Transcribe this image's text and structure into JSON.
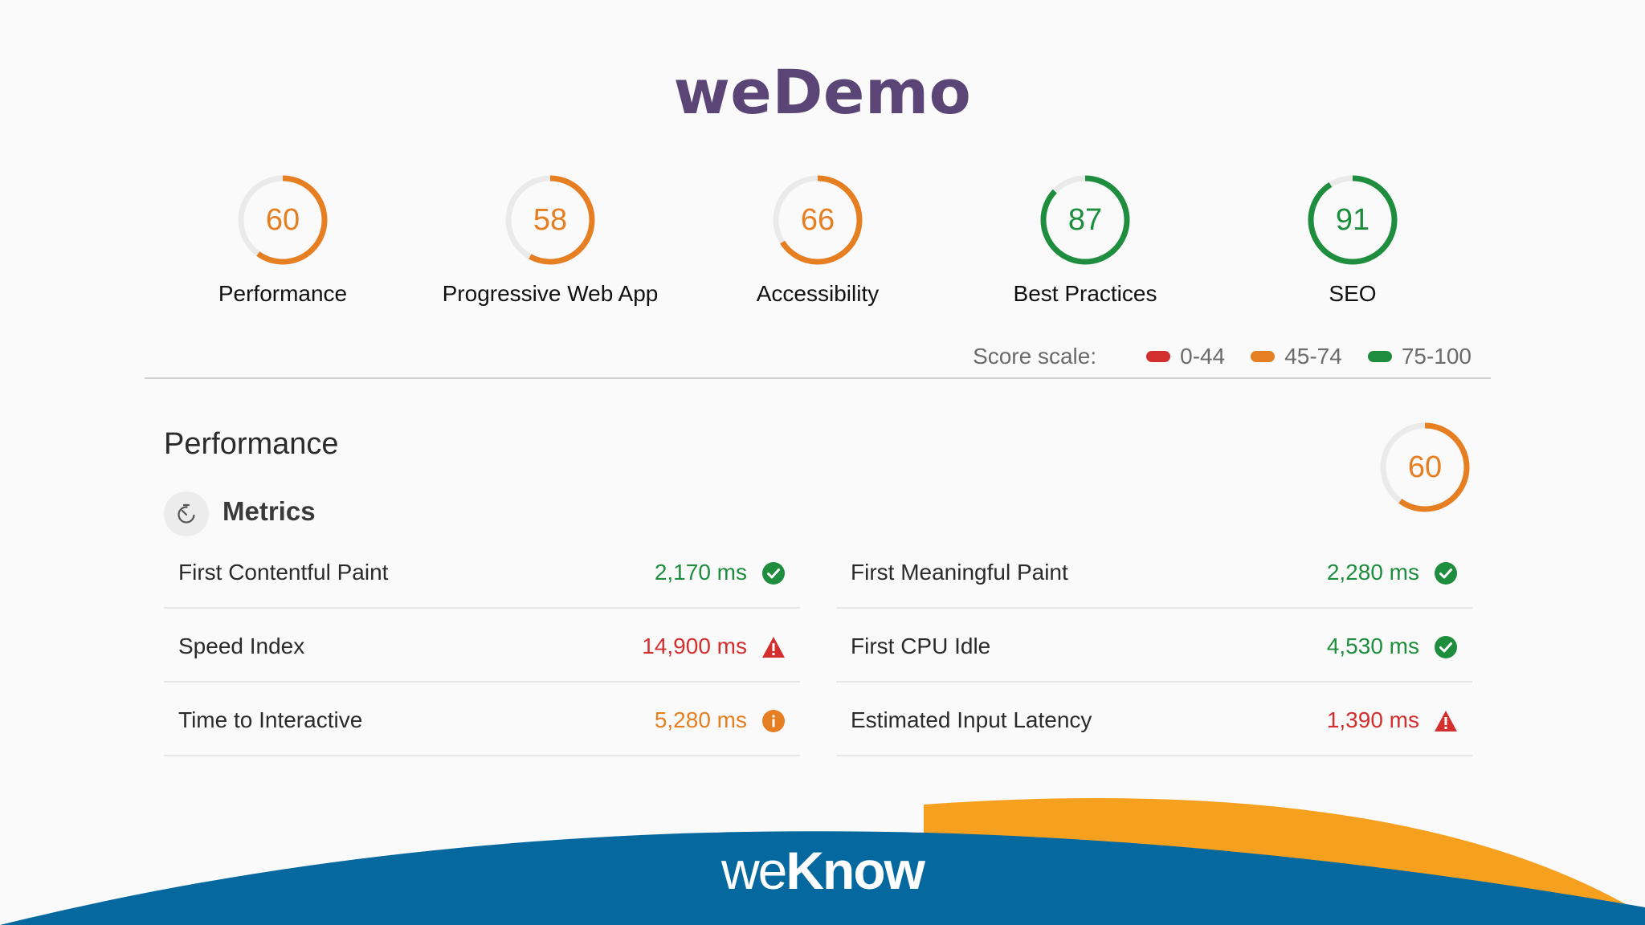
{
  "header": {
    "title": "weDemo"
  },
  "colors": {
    "orange": "#e67e22",
    "green": "#1e8e3e",
    "red": "#d32f2f",
    "track": "#eaeaea",
    "footer_blue": "#0569a0",
    "footer_orange": "#f6a020"
  },
  "scores": [
    {
      "value": 60,
      "label": "Performance",
      "status": "orange"
    },
    {
      "value": 58,
      "label": "Progressive Web App",
      "status": "orange"
    },
    {
      "value": 66,
      "label": "Accessibility",
      "status": "orange"
    },
    {
      "value": 87,
      "label": "Best Practices",
      "status": "green"
    },
    {
      "value": 91,
      "label": "SEO",
      "status": "green"
    }
  ],
  "score_scale": {
    "label": "Score scale:",
    "ranges": [
      {
        "label": "0-44",
        "status": "red"
      },
      {
        "label": "45-74",
        "status": "orange"
      },
      {
        "label": "75-100",
        "status": "green"
      }
    ]
  },
  "section": {
    "title": "Performance",
    "score": {
      "value": 60,
      "status": "orange"
    },
    "metrics_label": "Metrics",
    "metrics_icon": "stopwatch-icon",
    "metrics": [
      {
        "name": "First Contentful Paint",
        "value": "2,170 ms",
        "status": "green",
        "icon": "check-circle-icon"
      },
      {
        "name": "First Meaningful Paint",
        "value": "2,280 ms",
        "status": "green",
        "icon": "check-circle-icon"
      },
      {
        "name": "Speed Index",
        "value": "14,900 ms",
        "status": "red",
        "icon": "warning-triangle-icon"
      },
      {
        "name": "First CPU Idle",
        "value": "4,530 ms",
        "status": "green",
        "icon": "check-circle-icon"
      },
      {
        "name": "Time to Interactive",
        "value": "5,280 ms",
        "status": "orange",
        "icon": "info-circle-icon"
      },
      {
        "name": "Estimated Input Latency",
        "value": "1,390 ms",
        "status": "red",
        "icon": "warning-triangle-icon"
      }
    ]
  },
  "footer": {
    "logo_light": "we",
    "logo_bold": "Know"
  }
}
